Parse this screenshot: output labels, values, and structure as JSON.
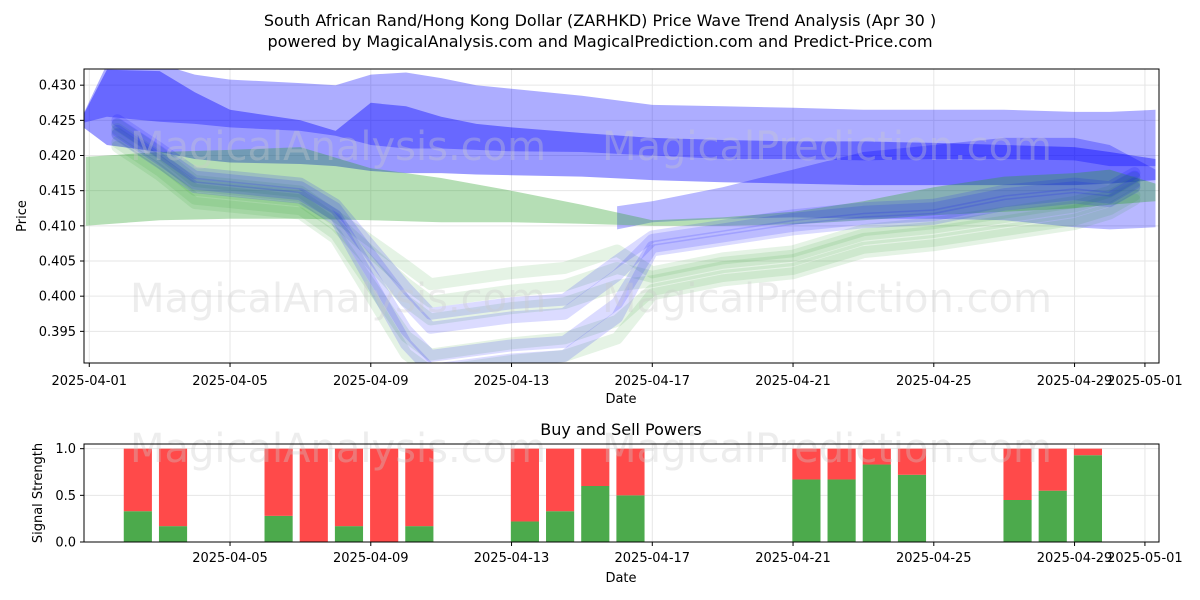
{
  "header": {
    "title": "South African Rand/Hong Kong Dollar (ZARHKD) Price Wave Trend Analysis (Apr 30 )",
    "subtitle": "powered by MagicalAnalysis.com and MagicalPrediction.com and Predict-Price.com"
  },
  "watermarks": {
    "top_left": "MagicalAnalysis.com",
    "top_right": "MagicalPrediction.com",
    "mid_left": "MagicalAnalysis.com",
    "mid_right": "MagicalPrediction.com",
    "bottom_left": "MagicalAnalysis.com",
    "bottom_right": "MagicalPrediction.com"
  },
  "colors": {
    "blue": "#0000ff",
    "green": "#2ca02c",
    "buy": "#4caa4c",
    "sell": "#ff4a4a",
    "grid": "#e6e6e6"
  },
  "chart_data": [
    {
      "type": "area",
      "title": "",
      "xlabel": "Date",
      "ylabel": "Price",
      "xlim": [
        -0.15,
        30.4
      ],
      "ylim": [
        0.3905,
        0.4323
      ],
      "grid": true,
      "x_ticks": [
        0,
        4,
        8,
        12,
        16,
        20,
        24,
        28,
        30
      ],
      "x_tick_labels": [
        "2025-04-01",
        "2025-04-05",
        "2025-04-09",
        "2025-04-13",
        "2025-04-17",
        "2025-04-21",
        "2025-04-25",
        "2025-04-29",
        "2025-05-01"
      ],
      "y_ticks": [
        0.395,
        0.4,
        0.405,
        0.41,
        0.415,
        0.42,
        0.425,
        0.43
      ],
      "y_tick_labels": [
        "0.395",
        "0.400",
        "0.405",
        "0.410",
        "0.415",
        "0.420",
        "0.425",
        "0.430"
      ],
      "x_note": "days since 2025-04-01",
      "bands": [
        {
          "name": "blue-long-wave",
          "color": "blue",
          "opacity": 0.32,
          "x": [
            -0.3,
            0.5,
            2,
            3,
            4,
            6,
            7,
            8,
            9,
            10,
            11,
            12,
            14,
            16,
            18,
            20,
            22,
            24,
            26,
            28,
            29,
            30.3
          ],
          "upper": [
            0.4245,
            0.433,
            0.433,
            0.4315,
            0.4308,
            0.4303,
            0.43,
            0.4315,
            0.4318,
            0.431,
            0.43,
            0.4295,
            0.4285,
            0.4272,
            0.427,
            0.4268,
            0.4265,
            0.4265,
            0.4265,
            0.4262,
            0.4262,
            0.4265
          ],
          "lower": [
            0.4245,
            0.4255,
            0.4248,
            0.4245,
            0.424,
            0.4235,
            0.4228,
            0.4215,
            0.421,
            0.421,
            0.4208,
            0.4206,
            0.4205,
            0.42,
            0.4195,
            0.4195,
            0.4193,
            0.4195,
            0.4195,
            0.4193,
            0.4185,
            0.4185
          ]
        },
        {
          "name": "blue-mid-wave",
          "color": "blue",
          "opacity": 0.4,
          "x": [
            -0.3,
            0.5,
            2,
            3,
            4,
            6,
            7,
            8,
            9,
            10,
            11,
            12,
            14,
            16,
            18,
            20,
            22,
            24,
            26,
            28,
            29,
            30.3
          ],
          "upper": [
            0.4245,
            0.4322,
            0.432,
            0.429,
            0.4265,
            0.425,
            0.4235,
            0.4275,
            0.427,
            0.4255,
            0.4245,
            0.424,
            0.4232,
            0.4225,
            0.4222,
            0.422,
            0.422,
            0.4218,
            0.4215,
            0.4212,
            0.4205,
            0.4195
          ],
          "lower": [
            0.4245,
            0.4215,
            0.4205,
            0.4195,
            0.419,
            0.4188,
            0.4185,
            0.4178,
            0.4175,
            0.4175,
            0.4173,
            0.4172,
            0.417,
            0.4165,
            0.4162,
            0.416,
            0.4158,
            0.4158,
            0.4158,
            0.4158,
            0.416,
            0.4165
          ]
        },
        {
          "name": "blue-lower-band",
          "color": "blue",
          "opacity": 0.28,
          "x": [
            15,
            16,
            18,
            20,
            22,
            24,
            26,
            28,
            29,
            30.3
          ],
          "upper": [
            0.4128,
            0.4135,
            0.4155,
            0.418,
            0.4205,
            0.4215,
            0.4225,
            0.4225,
            0.4215,
            0.418
          ],
          "lower": [
            0.4095,
            0.4105,
            0.411,
            0.4112,
            0.411,
            0.411,
            0.4108,
            0.4098,
            0.4095,
            0.4098
          ]
        },
        {
          "name": "green-long-wave",
          "color": "green",
          "opacity": 0.35,
          "x": [
            -0.1,
            2,
            4,
            6,
            8,
            10,
            12,
            14,
            16,
            18,
            20,
            22,
            24,
            26,
            28,
            29,
            30.3
          ],
          "upper": [
            0.4198,
            0.4205,
            0.4208,
            0.4212,
            0.4182,
            0.4168,
            0.415,
            0.413,
            0.4108,
            0.4112,
            0.412,
            0.4135,
            0.4155,
            0.417,
            0.4175,
            0.418,
            0.416
          ],
          "lower": [
            0.41,
            0.4108,
            0.411,
            0.411,
            0.4108,
            0.4105,
            0.4105,
            0.4103,
            0.41,
            0.41,
            0.4102,
            0.4108,
            0.4115,
            0.412,
            0.4125,
            0.413,
            0.4135
          ]
        }
      ],
      "waves": [
        {
          "color": "green",
          "opacity": 0.12,
          "width": 12,
          "shift": -0.0025,
          "y": [
            0.4225,
            0.4185,
            0.4145,
            0.413,
            0.4095,
            0.3968,
            0.3942,
            0.3958,
            0.3965,
            0.399,
            0.4015,
            0.4035,
            0.4045,
            0.4075,
            0.4085,
            0.41,
            0.4115,
            0.413,
            0.415
          ]
        },
        {
          "color": "green",
          "opacity": 0.12,
          "width": 12,
          "shift": 0.0025,
          "y": [
            0.4225,
            0.4185,
            0.4145,
            0.413,
            0.4095,
            0.3968,
            0.3942,
            0.3958,
            0.3965,
            0.399,
            0.4015,
            0.4035,
            0.4045,
            0.4075,
            0.4085,
            0.41,
            0.4115,
            0.413,
            0.415
          ]
        },
        {
          "color": "green",
          "opacity": 0.12,
          "width": 12,
          "shift": -0.005,
          "y": [
            0.4225,
            0.4185,
            0.4145,
            0.413,
            0.4095,
            0.3968,
            0.3942,
            0.3958,
            0.3965,
            0.399,
            0.4015,
            0.4035,
            0.4045,
            0.4075,
            0.4085,
            0.41,
            0.4115,
            0.413,
            0.415
          ]
        },
        {
          "color": "green",
          "opacity": 0.12,
          "width": 12,
          "shift": 0.005,
          "y": [
            0.4225,
            0.4185,
            0.4145,
            0.413,
            0.4095,
            0.3968,
            0.3942,
            0.3958,
            0.3965,
            0.399,
            0.4015,
            0.4035,
            0.4045,
            0.4075,
            0.4085,
            0.41,
            0.4115,
            0.413,
            0.415
          ]
        },
        {
          "color": "green",
          "opacity": 0.12,
          "width": 12,
          "shift": 0.0075,
          "y": [
            0.4225,
            0.4185,
            0.4145,
            0.413,
            0.4095,
            0.3968,
            0.3942,
            0.3958,
            0.3965,
            0.399,
            0.4015,
            0.4035,
            0.4045,
            0.4075,
            0.4085,
            0.41,
            0.4115,
            0.413,
            0.415
          ]
        },
        {
          "color": "blue",
          "opacity": 0.14,
          "width": 12,
          "shift": -0.002,
          "y": [
            0.424,
            0.42,
            0.4165,
            0.415,
            0.412,
            0.3972,
            0.3935,
            0.395,
            0.3955,
            0.401,
            0.4075,
            0.409,
            0.4105,
            0.4115,
            0.412,
            0.414,
            0.415,
            0.4145,
            0.4165
          ]
        },
        {
          "color": "blue",
          "opacity": 0.14,
          "width": 12,
          "shift": 0.002,
          "y": [
            0.424,
            0.42,
            0.4165,
            0.415,
            0.412,
            0.3972,
            0.3935,
            0.395,
            0.3955,
            0.401,
            0.4075,
            0.409,
            0.4105,
            0.4115,
            0.412,
            0.414,
            0.415,
            0.4145,
            0.4165
          ]
        },
        {
          "color": "blue",
          "opacity": 0.14,
          "width": 12,
          "shift": 0.004,
          "y": [
            0.424,
            0.42,
            0.4165,
            0.415,
            0.412,
            0.3972,
            0.3935,
            0.395,
            0.3955,
            0.401,
            0.4075,
            0.409,
            0.4105,
            0.4115,
            0.412,
            0.414,
            0.415,
            0.4145,
            0.4165
          ]
        },
        {
          "color": "blue",
          "opacity": 0.14,
          "width": 12,
          "shift": -0.004,
          "y": [
            0.424,
            0.42,
            0.4165,
            0.415,
            0.412,
            0.3972,
            0.3935,
            0.395,
            0.3955,
            0.401,
            0.4075,
            0.409,
            0.4105,
            0.4115,
            0.412,
            0.414,
            0.415,
            0.4145,
            0.4165
          ]
        }
      ],
      "wave_x": [
        0.8,
        2,
        3,
        6,
        7,
        9,
        9.7,
        12,
        13.5,
        15,
        16,
        18,
        20,
        22,
        24,
        26,
        28,
        29,
        29.7
      ]
    },
    {
      "type": "bar",
      "title": "Buy and Sell Powers",
      "xlabel": "Date",
      "ylabel": "Signal Strength",
      "xlim": [
        -0.15,
        30.4
      ],
      "ylim": [
        0,
        1.05
      ],
      "grid": true,
      "x_ticks": [
        4,
        8,
        12,
        16,
        20,
        24,
        28,
        30
      ],
      "x_tick_labels": [
        "2025-04-05",
        "2025-04-09",
        "2025-04-13",
        "2025-04-17",
        "2025-04-21",
        "2025-04-25",
        "2025-04-29",
        "2025-05-01"
      ],
      "y_ticks": [
        0,
        0.5,
        1.0
      ],
      "y_tick_labels": [
        "0.0",
        "0.5",
        "1.0"
      ],
      "x": [
        1.38,
        2.38,
        5.38,
        6.38,
        7.38,
        8.38,
        9.38,
        12.38,
        13.38,
        14.38,
        15.38,
        20.38,
        21.38,
        22.38,
        23.38,
        26.38,
        27.38,
        28.38
      ],
      "series": [
        {
          "name": "Buy",
          "color": "buy",
          "values": [
            0.33,
            0.17,
            0.28,
            0.0,
            0.17,
            0.0,
            0.17,
            0.22,
            0.33,
            0.6,
            0.5,
            0.67,
            0.67,
            0.83,
            0.72,
            0.45,
            0.55,
            0.93
          ]
        },
        {
          "name": "Sell",
          "color": "sell",
          "values": [
            0.67,
            0.83,
            0.72,
            1.0,
            0.83,
            1.0,
            0.83,
            0.78,
            0.67,
            0.4,
            0.5,
            0.33,
            0.33,
            0.17,
            0.28,
            0.55,
            0.45,
            0.07
          ]
        }
      ]
    }
  ]
}
